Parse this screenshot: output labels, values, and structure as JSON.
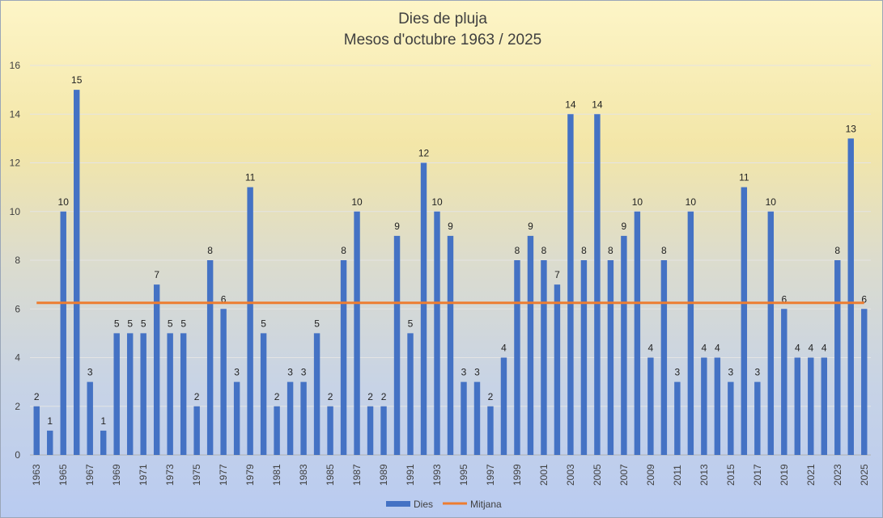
{
  "chart_data": {
    "type": "bar",
    "title": "Dies de pluja",
    "subtitle": "Mesos d'octubre 1963 / 2025",
    "x": [
      1963,
      1964,
      1965,
      1966,
      1967,
      1968,
      1969,
      1970,
      1971,
      1972,
      1973,
      1974,
      1975,
      1976,
      1977,
      1978,
      1979,
      1980,
      1981,
      1982,
      1983,
      1984,
      1985,
      1986,
      1987,
      1988,
      1989,
      1990,
      1991,
      1992,
      1993,
      1994,
      1995,
      1996,
      1997,
      1998,
      1999,
      2000,
      2001,
      2002,
      2003,
      2004,
      2005,
      2006,
      2007,
      2008,
      2009,
      2010,
      2011,
      2012,
      2013,
      2014,
      2015,
      2016,
      2017,
      2018,
      2019,
      2020,
      2021,
      2022,
      2023,
      2024,
      2025
    ],
    "x_tick_labels_every": 2,
    "series": [
      {
        "name": "Dies",
        "type": "bar",
        "color": "#4472c4",
        "values": [
          2,
          1,
          10,
          15,
          3,
          1,
          5,
          5,
          5,
          7,
          5,
          5,
          2,
          8,
          6,
          3,
          11,
          5,
          2,
          3,
          3,
          5,
          2,
          8,
          10,
          2,
          2,
          9,
          5,
          12,
          10,
          9,
          3,
          3,
          2,
          4,
          8,
          9,
          8,
          7,
          14,
          8,
          14,
          8,
          9,
          10,
          4,
          8,
          3,
          10,
          4,
          4,
          3,
          11,
          3,
          10,
          6,
          4,
          4,
          4,
          8,
          13,
          6
        ]
      },
      {
        "name": "Mitjana",
        "type": "line",
        "color": "#ed7d31",
        "value": 6.25
      }
    ],
    "ylim": [
      0,
      16
    ],
    "y_ticks": [
      0,
      2,
      4,
      6,
      8,
      10,
      12,
      14,
      16
    ],
    "grid": true,
    "legend_position": "bottom",
    "data_labels": true
  }
}
